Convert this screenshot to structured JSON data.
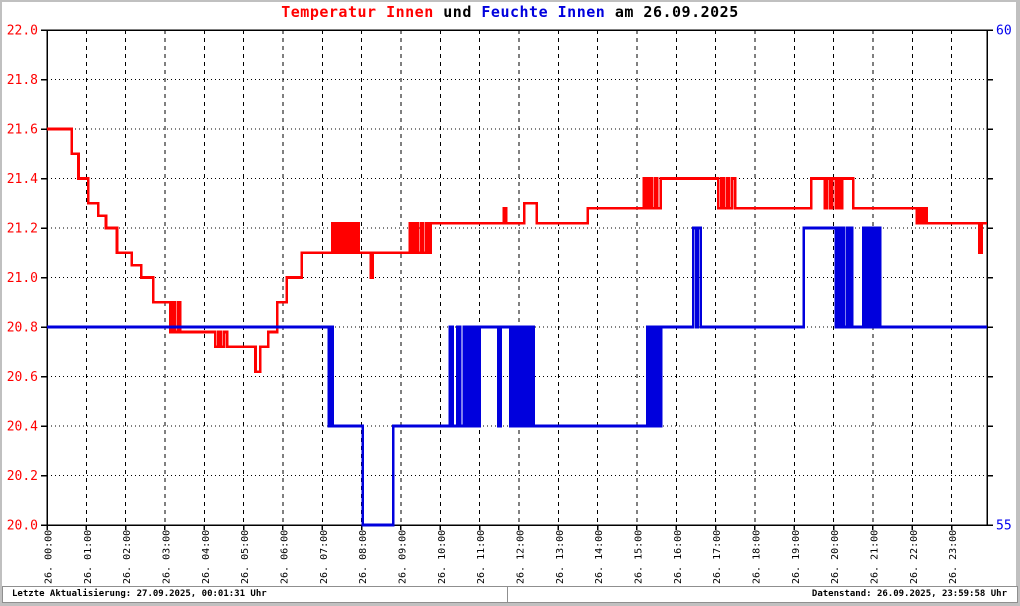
{
  "title": {
    "temp_label": "Temperatur Innen",
    "connector": " und ",
    "hum_label": "Feuchte Innen",
    "date_suffix": " am 26.09.2025"
  },
  "colors": {
    "temperature": "#ff0000",
    "humidity": "#0000dd",
    "humidity_axis_label": "#0000ee",
    "temperature_axis_label": "#ff0000",
    "grid": "#000000",
    "frame": "#000000",
    "plot_background": "#ffffff",
    "window_border": "#c0c0c0"
  },
  "status_bar": {
    "left": "Letzte Aktualisierung: 27.09.2025, 00:01:31 Uhr",
    "right": "Datenstand: 26.09.2025, 23:59:58 Uhr"
  },
  "chart_data": {
    "type": "line",
    "title": "Temperatur Innen und Feuchte Innen am 26.09.2025",
    "grid": true,
    "legend": "none",
    "x_axis": {
      "unit": "hours",
      "range": [
        0,
        23.9
      ],
      "tick_hours": [
        0,
        1,
        2,
        3,
        4,
        5,
        6,
        7,
        8,
        9,
        10,
        11,
        12,
        13,
        14,
        15,
        16,
        17,
        18,
        19,
        20,
        21,
        22,
        23
      ],
      "tick_labels": [
        "26. 00:00",
        "26. 01:00",
        "26. 02:00",
        "26. 03:00",
        "26. 04:00",
        "26. 05:00",
        "26. 06:00",
        "26. 07:00",
        "26. 08:00",
        "26. 09:00",
        "26. 10:00",
        "26. 11:00",
        "26. 12:00",
        "26. 13:00",
        "26. 14:00",
        "26. 15:00",
        "26. 16:00",
        "26. 17:00",
        "26. 18:00",
        "26. 19:00",
        "26. 20:00",
        "26. 21:00",
        "26. 22:00",
        "26. 23:00"
      ]
    },
    "y_left": {
      "series": "Temperatur Innen",
      "range": [
        20.0,
        22.0
      ],
      "tick_step": 0.2,
      "tick_labels": [
        "22.0",
        "21.8",
        "21.6",
        "21.4",
        "21.2",
        "21.0",
        "20.8",
        "20.6",
        "20.4",
        "20.2",
        "20.0"
      ]
    },
    "y_right": {
      "series": "Feuchte Innen",
      "range": [
        55,
        60
      ],
      "tick_labels_top_bottom": [
        "60",
        "55"
      ]
    },
    "series": [
      {
        "name": "Temperatur Innen",
        "axis": "left",
        "color_key": "temperature",
        "step": true,
        "points": [
          [
            0.0,
            21.6
          ],
          [
            0.63,
            21.5
          ],
          [
            0.8,
            21.4
          ],
          [
            1.05,
            21.3
          ],
          [
            1.3,
            21.25
          ],
          [
            1.5,
            21.2
          ],
          [
            1.78,
            21.1
          ],
          [
            2.15,
            21.05
          ],
          [
            2.4,
            21.0
          ],
          [
            2.7,
            20.9
          ],
          [
            3.13,
            20.78
          ],
          [
            3.19,
            20.9
          ],
          [
            3.25,
            20.78
          ],
          [
            3.32,
            20.9
          ],
          [
            3.39,
            20.78
          ],
          [
            4.28,
            20.72
          ],
          [
            4.35,
            20.78
          ],
          [
            4.42,
            20.72
          ],
          [
            4.5,
            20.78
          ],
          [
            4.58,
            20.72
          ],
          [
            5.3,
            20.62
          ],
          [
            5.42,
            20.72
          ],
          [
            5.63,
            20.78
          ],
          [
            5.85,
            20.9
          ],
          [
            6.1,
            21.0
          ],
          [
            6.48,
            21.1
          ],
          [
            7.25,
            21.22
          ],
          [
            7.31,
            21.1
          ],
          [
            7.37,
            21.22
          ],
          [
            7.43,
            21.1
          ],
          [
            7.49,
            21.22
          ],
          [
            7.55,
            21.1
          ],
          [
            7.61,
            21.22
          ],
          [
            7.67,
            21.1
          ],
          [
            7.73,
            21.22
          ],
          [
            7.8,
            21.1
          ],
          [
            7.86,
            21.22
          ],
          [
            7.92,
            21.1
          ],
          [
            8.23,
            21.0
          ],
          [
            8.28,
            21.1
          ],
          [
            9.23,
            21.22
          ],
          [
            9.3,
            21.1
          ],
          [
            9.36,
            21.22
          ],
          [
            9.43,
            21.1
          ],
          [
            9.5,
            21.22
          ],
          [
            9.57,
            21.1
          ],
          [
            9.64,
            21.22
          ],
          [
            9.7,
            21.1
          ],
          [
            9.75,
            21.22
          ],
          [
            11.62,
            21.28
          ],
          [
            11.68,
            21.22
          ],
          [
            12.13,
            21.3
          ],
          [
            12.45,
            21.22
          ],
          [
            13.75,
            21.28
          ],
          [
            15.17,
            21.4
          ],
          [
            15.23,
            21.28
          ],
          [
            15.3,
            21.4
          ],
          [
            15.37,
            21.28
          ],
          [
            15.45,
            21.4
          ],
          [
            15.52,
            21.28
          ],
          [
            15.6,
            21.4
          ],
          [
            17.07,
            21.28
          ],
          [
            17.14,
            21.4
          ],
          [
            17.21,
            21.28
          ],
          [
            17.28,
            21.4
          ],
          [
            17.35,
            21.28
          ],
          [
            17.42,
            21.4
          ],
          [
            17.5,
            21.28
          ],
          [
            19.43,
            21.4
          ],
          [
            19.78,
            21.28
          ],
          [
            19.83,
            21.4
          ],
          [
            19.9,
            21.28
          ],
          [
            19.96,
            21.4
          ],
          [
            20.05,
            21.28
          ],
          [
            20.11,
            21.4
          ],
          [
            20.17,
            21.28
          ],
          [
            20.22,
            21.4
          ],
          [
            20.5,
            21.28
          ],
          [
            22.12,
            21.22
          ],
          [
            22.19,
            21.28
          ],
          [
            22.25,
            21.22
          ],
          [
            22.31,
            21.28
          ],
          [
            22.37,
            21.22
          ],
          [
            23.7,
            21.1
          ],
          [
            23.77,
            21.22
          ],
          [
            23.9,
            21.22
          ]
        ]
      },
      {
        "name": "Feuchte Innen",
        "axis": "right",
        "color_key": "humidity",
        "step": true,
        "points": [
          [
            0.0,
            57
          ],
          [
            7.16,
            56
          ],
          [
            7.21,
            57
          ],
          [
            7.27,
            56
          ],
          [
            8.03,
            55
          ],
          [
            8.8,
            56
          ],
          [
            10.24,
            57
          ],
          [
            10.31,
            56
          ],
          [
            10.43,
            57
          ],
          [
            10.5,
            56
          ],
          [
            10.6,
            57
          ],
          [
            10.65,
            56
          ],
          [
            10.7,
            57
          ],
          [
            10.75,
            56
          ],
          [
            10.8,
            57
          ],
          [
            10.85,
            56
          ],
          [
            10.9,
            57
          ],
          [
            10.95,
            56
          ],
          [
            11.0,
            57
          ],
          [
            11.48,
            56
          ],
          [
            11.54,
            57
          ],
          [
            11.78,
            56
          ],
          [
            11.84,
            57
          ],
          [
            11.9,
            56
          ],
          [
            11.96,
            57
          ],
          [
            12.02,
            56
          ],
          [
            12.08,
            57
          ],
          [
            12.14,
            56
          ],
          [
            12.2,
            57
          ],
          [
            12.26,
            56
          ],
          [
            12.32,
            57
          ],
          [
            12.37,
            56
          ],
          [
            15.26,
            57
          ],
          [
            15.32,
            56
          ],
          [
            15.38,
            57
          ],
          [
            15.44,
            56
          ],
          [
            15.5,
            57
          ],
          [
            15.56,
            56
          ],
          [
            15.62,
            57
          ],
          [
            16.43,
            58
          ],
          [
            16.51,
            57
          ],
          [
            16.55,
            58
          ],
          [
            16.62,
            57
          ],
          [
            19.24,
            58
          ],
          [
            20.05,
            57
          ],
          [
            20.1,
            58
          ],
          [
            20.15,
            57
          ],
          [
            20.2,
            58
          ],
          [
            20.26,
            57
          ],
          [
            20.33,
            58
          ],
          [
            20.38,
            57
          ],
          [
            20.42,
            58
          ],
          [
            20.47,
            57
          ],
          [
            20.76,
            58
          ],
          [
            20.82,
            57
          ],
          [
            20.88,
            58
          ],
          [
            20.94,
            57
          ],
          [
            21.0,
            58
          ],
          [
            21.06,
            57
          ],
          [
            21.12,
            58
          ],
          [
            21.18,
            57
          ],
          [
            23.9,
            57
          ]
        ]
      }
    ]
  }
}
